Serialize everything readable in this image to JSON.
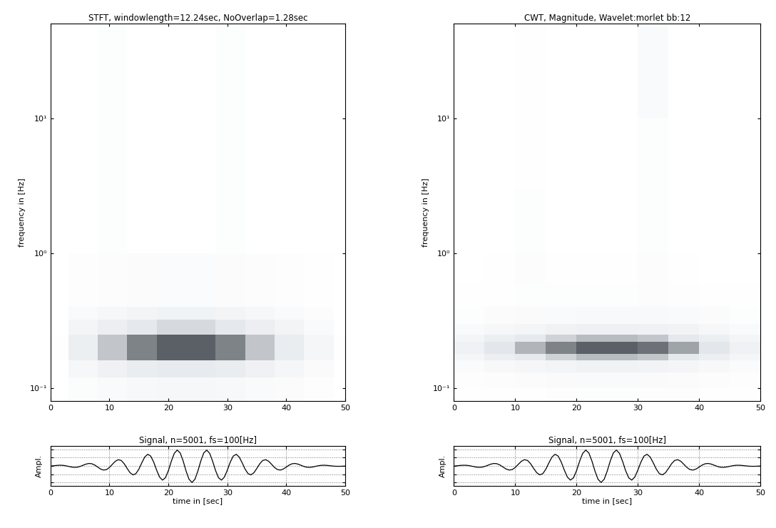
{
  "chart_data": [
    {
      "type": "heatmap",
      "title": "STFT, windowlength=12.24sec, NoOverlap=1.28sec",
      "y_label": "frequency in [Hz]",
      "log": "y",
      "xlim": [
        0,
        50
      ],
      "ylim": [
        0.08,
        50
      ],
      "xticks": [
        0,
        10,
        20,
        30,
        40,
        50
      ],
      "yticks": [
        {
          "value": 0.1,
          "label": "10⁻¹"
        },
        {
          "value": 1,
          "label": "10⁰"
        },
        {
          "value": 10,
          "label": "10¹"
        }
      ],
      "grid": false,
      "x_edges": [
        0,
        3,
        8,
        13,
        18,
        23,
        28,
        33,
        38,
        43,
        48,
        50
      ],
      "y_edges": [
        0.08,
        0.12,
        0.16,
        0.25,
        0.32,
        0.4,
        1,
        50
      ],
      "value_range": [
        0,
        1
      ],
      "cells": [
        [
          0.0,
          0.07,
          0.12,
          0.16,
          0.18,
          0.18,
          0.16,
          0.12,
          0.08,
          0.04,
          0.0
        ],
        [
          0.01,
          0.18,
          0.3,
          0.4,
          0.45,
          0.45,
          0.4,
          0.3,
          0.2,
          0.1,
          0.01
        ],
        [
          0.02,
          0.35,
          0.6,
          0.8,
          0.9,
          0.9,
          0.8,
          0.6,
          0.4,
          0.2,
          0.02
        ],
        [
          0.01,
          0.21,
          0.36,
          0.48,
          0.54,
          0.54,
          0.48,
          0.36,
          0.24,
          0.12,
          0.01
        ],
        [
          0.01,
          0.11,
          0.18,
          0.24,
          0.27,
          0.27,
          0.24,
          0.18,
          0.12,
          0.06,
          0.01
        ],
        [
          0.0,
          0.04,
          0.06,
          0.08,
          0.09,
          0.09,
          0.08,
          0.06,
          0.04,
          0.02,
          0.0
        ],
        [
          0.0,
          0.01,
          0.05,
          0.01,
          0.01,
          0.01,
          0.05,
          0.01,
          0.0,
          0.0,
          0.0
        ]
      ]
    },
    {
      "type": "heatmap",
      "title": "CWT, Magnitude, Wavelet:morlet bb:12",
      "y_label": "frequency in [Hz]",
      "log": "y",
      "xlim": [
        0,
        50
      ],
      "ylim": [
        0.08,
        50
      ],
      "xticks": [
        0,
        10,
        20,
        30,
        40,
        50
      ],
      "yticks": [
        {
          "value": 0.1,
          "label": "10⁻¹"
        },
        {
          "value": 1,
          "label": "10⁰"
        },
        {
          "value": 10,
          "label": "10¹"
        }
      ],
      "grid": false,
      "x_edges": [
        0,
        5,
        10,
        15,
        20,
        25,
        30,
        35,
        40,
        45,
        50
      ],
      "y_edges": [
        0.08,
        0.1,
        0.13,
        0.16,
        0.18,
        0.22,
        0.25,
        0.3,
        0.4,
        0.6,
        1,
        3,
        10,
        50
      ],
      "value_range": [
        0,
        1
      ],
      "cells": [
        [
          0.02,
          0.03,
          0.03,
          0.04,
          0.05,
          0.05,
          0.04,
          0.04,
          0.03,
          0.02
        ],
        [
          0.04,
          0.06,
          0.08,
          0.1,
          0.11,
          0.11,
          0.1,
          0.08,
          0.06,
          0.04
        ],
        [
          0.09,
          0.15,
          0.2,
          0.24,
          0.27,
          0.27,
          0.26,
          0.21,
          0.15,
          0.09
        ],
        [
          0.21,
          0.35,
          0.46,
          0.56,
          0.63,
          0.63,
          0.6,
          0.49,
          0.35,
          0.21
        ],
        [
          0.3,
          0.5,
          0.65,
          0.8,
          0.9,
          0.9,
          0.85,
          0.7,
          0.5,
          0.3
        ],
        [
          0.21,
          0.35,
          0.46,
          0.56,
          0.63,
          0.63,
          0.6,
          0.49,
          0.35,
          0.21
        ],
        [
          0.11,
          0.18,
          0.23,
          0.28,
          0.32,
          0.32,
          0.3,
          0.25,
          0.18,
          0.11
        ],
        [
          0.05,
          0.08,
          0.1,
          0.12,
          0.14,
          0.14,
          0.13,
          0.11,
          0.08,
          0.05
        ],
        [
          0.02,
          0.03,
          0.05,
          0.05,
          0.05,
          0.05,
          0.06,
          0.04,
          0.03,
          0.02
        ],
        [
          0.01,
          0.02,
          0.06,
          0.02,
          0.02,
          0.02,
          0.06,
          0.02,
          0.01,
          0.01
        ],
        [
          0.0,
          0.01,
          0.05,
          0.01,
          0.01,
          0.01,
          0.05,
          0.01,
          0.0,
          0.0
        ],
        [
          0.0,
          0.0,
          0.03,
          0.0,
          0.0,
          0.0,
          0.05,
          0.0,
          0.0,
          0.0
        ],
        [
          0.0,
          0.0,
          0.02,
          0.0,
          0.0,
          0.0,
          0.12,
          0.0,
          0.0,
          0.0
        ]
      ]
    },
    {
      "type": "line",
      "title": "Signal, n=5001, fs=100[Hz]",
      "x_label": "time in [sec]",
      "y_label": "Ampl.",
      "xlim": [
        0,
        50
      ],
      "ylim": [
        -1.2,
        1.2
      ],
      "xticks": [
        0,
        10,
        20,
        30,
        40,
        50
      ],
      "yticks": [
        -1,
        -0.5,
        0,
        0.5,
        1
      ],
      "tick_labels": "x",
      "grid": true,
      "color": "#000000",
      "x": [
        0,
        0.5,
        1,
        1.5,
        2,
        2.5,
        3,
        3.5,
        4,
        4.5,
        5,
        5.5,
        6,
        6.5,
        7,
        7.5,
        8,
        8.5,
        9,
        9.5,
        10,
        10.5,
        11,
        11.5,
        12,
        12.5,
        13,
        13.5,
        14,
        14.5,
        15,
        15.5,
        16,
        16.5,
        17,
        17.5,
        18,
        18.5,
        19,
        19.5,
        20,
        20.5,
        21,
        21.5,
        22,
        22.5,
        23,
        23.5,
        24,
        24.5,
        25,
        25.5,
        26,
        26.5,
        27,
        27.5,
        28,
        28.5,
        29,
        29.5,
        30,
        30.5,
        31,
        31.5,
        32,
        32.5,
        33,
        33.5,
        34,
        34.5,
        35,
        35.5,
        36,
        36.5,
        37,
        37.5,
        38,
        38.5,
        39,
        39.5,
        40,
        40.5,
        41,
        41.5,
        42,
        42.5,
        43,
        43.5,
        44,
        44.5,
        45,
        45.5,
        46,
        46.5,
        47,
        47.5,
        48,
        48.5,
        49,
        49.5,
        50
      ],
      "values": [
        -0.009,
        0.01,
        0.031,
        0.044,
        0.041,
        0.018,
        -0.02,
        -0.061,
        -0.085,
        -0.078,
        -0.033,
        0.038,
        0.109,
        0.151,
        0.136,
        0.058,
        -0.064,
        -0.184,
        -0.249,
        -0.221,
        -0.092,
        0.101,
        0.285,
        0.381,
        0.333,
        0.137,
        -0.147,
        -0.41,
        -0.539,
        -0.464,
        -0.188,
        0.198,
        0.546,
        0.707,
        0.599,
        0.239,
        -0.248,
        -0.672,
        -0.857,
        -0.714,
        -0.281,
        0.287,
        0.766,
        0.962,
        0.791,
        0.306,
        -0.308,
        -0.808,
        -1.0,
        -0.808,
        -0.308,
        0.306,
        0.791,
        0.962,
        0.766,
        0.287,
        -0.281,
        -0.714,
        -0.857,
        -0.672,
        -0.248,
        0.239,
        0.599,
        0.707,
        0.546,
        0.198,
        -0.188,
        -0.464,
        -0.539,
        -0.41,
        -0.147,
        0.137,
        0.333,
        0.381,
        0.285,
        0.101,
        -0.092,
        -0.221,
        -0.249,
        -0.184,
        -0.064,
        0.058,
        0.136,
        0.151,
        0.109,
        0.038,
        -0.033,
        -0.078,
        -0.085,
        -0.061,
        -0.02,
        0.018,
        0.041,
        0.044,
        0.031,
        0.01,
        -0.009,
        -0.02,
        -0.021,
        -0.015,
        -0.005
      ]
    },
    {
      "type": "line",
      "title": "Signal, n=5001, fs=100[Hz]",
      "x_label": "time in [sec]",
      "y_label": "Ampl.",
      "xlim": [
        0,
        50
      ],
      "ylim": [
        -1.2,
        1.2
      ],
      "xticks": [
        0,
        10,
        20,
        30,
        40,
        50
      ],
      "yticks": [
        -1,
        -0.5,
        0,
        0.5,
        1
      ],
      "tick_labels": "x",
      "grid": true,
      "color": "#000000",
      "x": [
        0,
        0.5,
        1,
        1.5,
        2,
        2.5,
        3,
        3.5,
        4,
        4.5,
        5,
        5.5,
        6,
        6.5,
        7,
        7.5,
        8,
        8.5,
        9,
        9.5,
        10,
        10.5,
        11,
        11.5,
        12,
        12.5,
        13,
        13.5,
        14,
        14.5,
        15,
        15.5,
        16,
        16.5,
        17,
        17.5,
        18,
        18.5,
        19,
        19.5,
        20,
        20.5,
        21,
        21.5,
        22,
        22.5,
        23,
        23.5,
        24,
        24.5,
        25,
        25.5,
        26,
        26.5,
        27,
        27.5,
        28,
        28.5,
        29,
        29.5,
        30,
        30.5,
        31,
        31.5,
        32,
        32.5,
        33,
        33.5,
        34,
        34.5,
        35,
        35.5,
        36,
        36.5,
        37,
        37.5,
        38,
        38.5,
        39,
        39.5,
        40,
        40.5,
        41,
        41.5,
        42,
        42.5,
        43,
        43.5,
        44,
        44.5,
        45,
        45.5,
        46,
        46.5,
        47,
        47.5,
        48,
        48.5,
        49,
        49.5,
        50
      ],
      "values": [
        -0.009,
        0.01,
        0.031,
        0.044,
        0.041,
        0.018,
        -0.02,
        -0.061,
        -0.085,
        -0.078,
        -0.033,
        0.038,
        0.109,
        0.151,
        0.136,
        0.058,
        -0.064,
        -0.184,
        -0.249,
        -0.221,
        -0.092,
        0.101,
        0.285,
        0.381,
        0.333,
        0.137,
        -0.147,
        -0.41,
        -0.539,
        -0.464,
        -0.188,
        0.198,
        0.546,
        0.707,
        0.599,
        0.239,
        -0.248,
        -0.672,
        -0.857,
        -0.714,
        -0.281,
        0.287,
        0.766,
        0.962,
        0.791,
        0.306,
        -0.308,
        -0.808,
        -1.0,
        -0.808,
        -0.308,
        0.306,
        0.791,
        0.962,
        0.766,
        0.287,
        -0.281,
        -0.714,
        -0.857,
        -0.672,
        -0.248,
        0.239,
        0.599,
        0.707,
        0.546,
        0.198,
        -0.188,
        -0.464,
        -0.539,
        -0.41,
        -0.147,
        0.137,
        0.333,
        0.381,
        0.285,
        0.101,
        -0.092,
        -0.221,
        -0.249,
        -0.184,
        -0.064,
        0.058,
        0.136,
        0.151,
        0.109,
        0.038,
        -0.033,
        -0.078,
        -0.085,
        -0.061,
        -0.02,
        0.018,
        0.041,
        0.044,
        0.031,
        0.01,
        -0.009,
        -0.02,
        -0.021,
        -0.015,
        -0.005
      ]
    }
  ]
}
